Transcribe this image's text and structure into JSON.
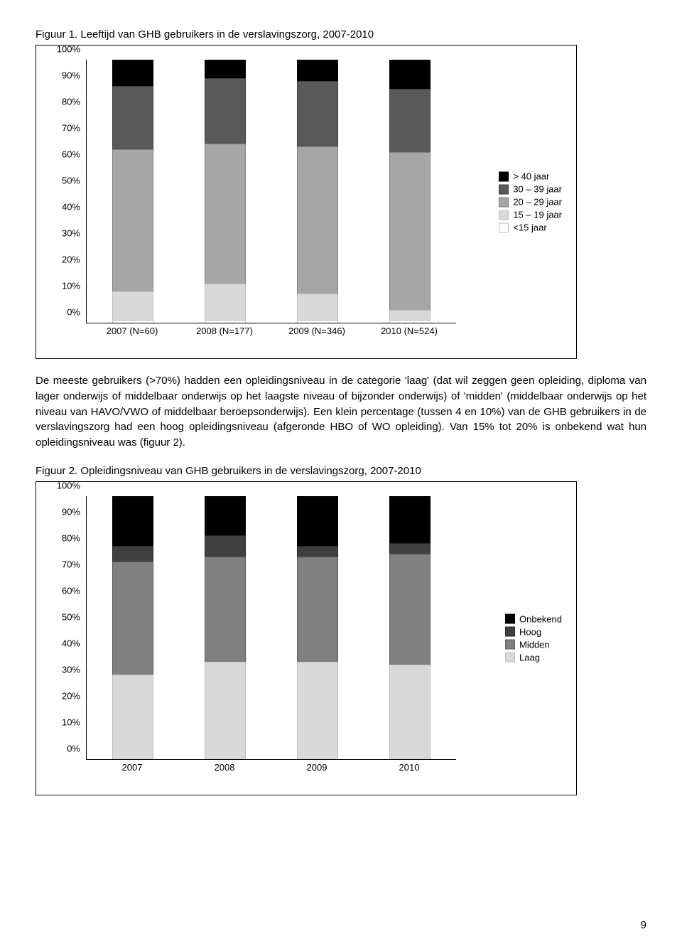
{
  "fig1_title": "Figuur 1. Leeftijd van GHB gebruikers in de verslavingszorg, 2007-2010",
  "fig2_title": "Figuur 2. Opleidingsniveau van GHB gebruikers in de verslavingszorg, 2007-2010",
  "body_para": "De meeste gebruikers (>70%) hadden een opleidingsniveau in de categorie 'laag' (dat wil zeggen geen opleiding, diploma van lager onderwijs of middelbaar onderwijs op het laagste niveau of bijzonder onderwijs) of 'midden' (middelbaar onderwijs op het niveau van HAVO/VWO of middelbaar beroepsonderwijs). Een klein percentage (tussen 4 en 10%) van de GHB gebruikers in de verslavingszorg had een hoog opleidingsniveau (afgeronde HBO of WO opleiding). Van 15% tot 20% is onbekend wat hun opleidingsniveau was (figuur 2).",
  "page_number": "9",
  "chart1": {
    "type": "stacked-bar-100",
    "ylim": [
      0,
      100
    ],
    "ytick_step": 10,
    "ytick_suffix": "%",
    "categories": [
      "2007 (N=60)",
      "2008 (N=177)",
      "2009 (N=346)",
      "2010 (N=524)"
    ],
    "legend_order_top_to_bottom": [
      "> 40 jaar",
      "30 – 39 jaar",
      "20 – 29 jaar",
      "15 – 19 jaar",
      "<15 jaar"
    ],
    "series": [
      {
        "name": "<15 jaar",
        "label": "<15 jaar",
        "color": "#ffffff",
        "border": "#bfbfbf"
      },
      {
        "name": "15 – 19 jaar",
        "label": "15 – 19 jaar",
        "color": "#d9d9d9",
        "border": "#bfbfbf"
      },
      {
        "name": "20 – 29 jaar",
        "label": "20 – 29 jaar",
        "color": "#a6a6a6",
        "border": "#7f7f7f"
      },
      {
        "name": "30 – 39 jaar",
        "label": "30 – 39 jaar",
        "color": "#595959",
        "border": "#404040"
      },
      {
        "name": "> 40 jaar",
        "label": "> 40 jaar",
        "color": "#000000",
        "border": "#000000"
      }
    ],
    "values": {
      "2007 (N=60)": [
        1,
        11,
        54,
        24,
        10
      ],
      "2008 (N=177)": [
        1,
        14,
        53,
        25,
        7
      ],
      "2009 (N=346)": [
        1,
        10,
        56,
        25,
        8
      ],
      "2010 (N=524)": [
        1,
        4,
        60,
        24,
        11
      ]
    },
    "bar_width_pct": 11,
    "bar_gap_mode": "evenly",
    "background_color": "#ffffff"
  },
  "chart2": {
    "type": "stacked-bar-100",
    "ylim": [
      0,
      100
    ],
    "ytick_step": 10,
    "ytick_suffix": "%",
    "categories": [
      "2007",
      "2008",
      "2009",
      "2010"
    ],
    "legend_order_top_to_bottom": [
      "Onbekend",
      "Hoog",
      "Midden",
      "Laag"
    ],
    "series": [
      {
        "name": "Laag",
        "label": "Laag",
        "color": "#d9d9d9",
        "border": "#bfbfbf"
      },
      {
        "name": "Midden",
        "label": "Midden",
        "color": "#808080",
        "border": "#595959"
      },
      {
        "name": "Hoog",
        "label": "Hoog",
        "color": "#404040",
        "border": "#262626"
      },
      {
        "name": "Onbekend",
        "label": "Onbekend",
        "color": "#000000",
        "border": "#000000"
      }
    ],
    "values": {
      "2007": [
        32,
        43,
        6,
        19
      ],
      "2008": [
        37,
        40,
        8,
        15
      ],
      "2009": [
        37,
        40,
        4,
        19
      ],
      "2010": [
        36,
        42,
        4,
        18
      ]
    },
    "bar_width_pct": 11,
    "bar_gap_mode": "evenly",
    "background_color": "#ffffff"
  }
}
